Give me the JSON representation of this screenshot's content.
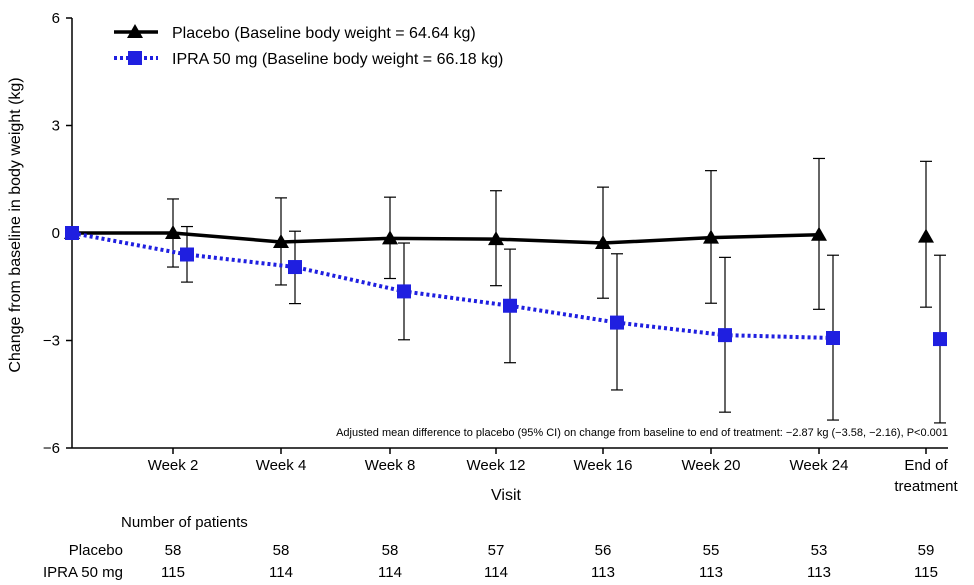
{
  "chart_data": {
    "type": "line",
    "ylabel": "Change from baseline in body weight (kg)",
    "xlabel": "Visit",
    "ylim": [
      -6,
      6
    ],
    "yticks": [
      6,
      3,
      0,
      -3,
      -6
    ],
    "ytick_labels": [
      "6",
      "3",
      "0",
      "−3",
      "−6"
    ],
    "categories": [
      "Week 2",
      "Week 4",
      "Week 8",
      "Week 12",
      "Week 16",
      "Week 20",
      "Week 24",
      "End of treatment"
    ],
    "category_lines": [
      [
        "Week 2"
      ],
      [
        "Week 4"
      ],
      [
        "Week 8"
      ],
      [
        "Week 12"
      ],
      [
        "Week 16"
      ],
      [
        "Week 20"
      ],
      [
        "Week 24"
      ],
      [
        "End of",
        "treatment"
      ]
    ],
    "grid": false,
    "legend_position": "top-left",
    "series": [
      {
        "name": "Placebo (Baseline body weight = 64.64 kg)",
        "color": "#000000",
        "marker": "triangle",
        "line_style": "solid",
        "baseline": 0,
        "values": [
          0.0,
          -0.25,
          -0.15,
          -0.17,
          -0.28,
          -0.13,
          -0.05,
          -0.1
        ],
        "ci_upper": [
          0.95,
          0.98,
          1.0,
          1.18,
          1.28,
          1.74,
          2.08,
          2.0
        ],
        "ci_lower": [
          -0.95,
          -1.45,
          -1.27,
          -1.47,
          -1.82,
          -1.96,
          -2.13,
          -2.07
        ],
        "end_connected": false
      },
      {
        "name": "IPRA 50 mg (Baseline body weight = 66.18 kg)",
        "color": "#1f1fe0",
        "marker": "square",
        "line_style": "dotted",
        "baseline": 0,
        "values": [
          -0.6,
          -0.95,
          -1.63,
          -2.03,
          -2.5,
          -2.85,
          -2.93,
          -2.96
        ],
        "ci_upper": [
          0.18,
          0.05,
          -0.28,
          -0.45,
          -0.58,
          -0.68,
          -0.62,
          -0.62
        ],
        "ci_lower": [
          -1.37,
          -1.97,
          -2.98,
          -3.62,
          -4.38,
          -5.0,
          -5.22,
          -5.3
        ],
        "end_connected": false
      }
    ],
    "annotation": "Adjusted mean difference to placebo (95% CI) on change from baseline to end of treatment: −2.87 kg (−3.58, −2.16), P<0.001"
  },
  "patients_table": {
    "title": "Number of patients",
    "rows": [
      {
        "label": "Placebo",
        "values": [
          "58",
          "58",
          "58",
          "57",
          "56",
          "55",
          "53",
          "59"
        ]
      },
      {
        "label": "IPRA 50 mg",
        "values": [
          "115",
          "114",
          "114",
          "114",
          "113",
          "113",
          "113",
          "115"
        ]
      }
    ]
  }
}
